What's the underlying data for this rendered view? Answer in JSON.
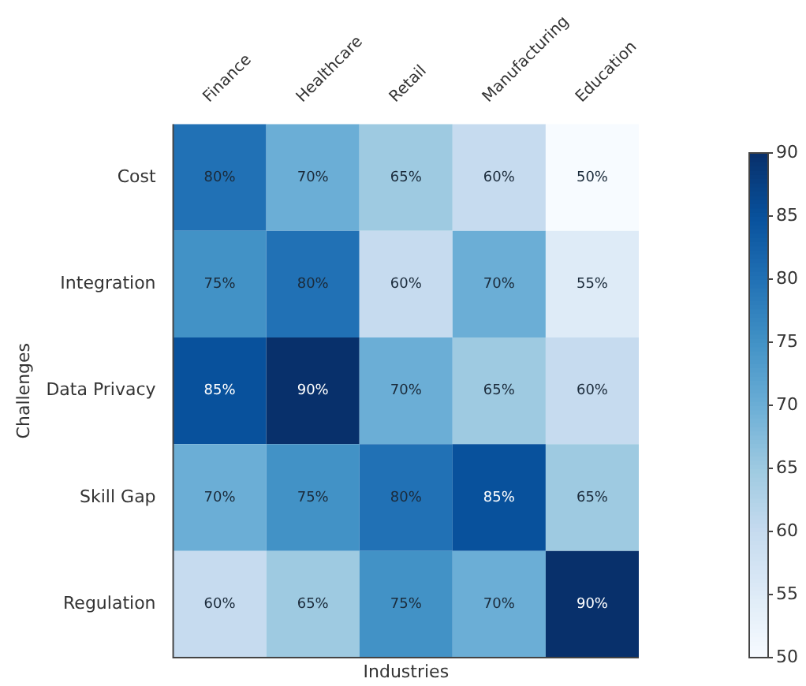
{
  "chart_data": {
    "type": "heatmap",
    "xlabel": "Industries",
    "ylabel": "Challenges",
    "categories": [
      "Finance",
      "Healthcare",
      "Retail",
      "Manufacturing",
      "Education"
    ],
    "y_categories": [
      "Cost",
      "Integration",
      "Data Privacy",
      "Skill Gap",
      "Regulation"
    ],
    "cells": [
      [
        80,
        70,
        65,
        60,
        50
      ],
      [
        75,
        80,
        60,
        70,
        55
      ],
      [
        85,
        90,
        70,
        65,
        60
      ],
      [
        70,
        75,
        80,
        85,
        65
      ],
      [
        60,
        65,
        75,
        70,
        90
      ]
    ],
    "cell_labels": [
      [
        "80%",
        "70%",
        "65%",
        "60%",
        "50%"
      ],
      [
        "75%",
        "80%",
        "60%",
        "70%",
        "55%"
      ],
      [
        "85%",
        "90%",
        "70%",
        "65%",
        "60%"
      ],
      [
        "70%",
        "75%",
        "80%",
        "85%",
        "65%"
      ],
      [
        "60%",
        "65%",
        "75%",
        "70%",
        "90%"
      ]
    ],
    "clim": [
      50,
      90
    ],
    "cticks": [
      50,
      55,
      60,
      65,
      70,
      75,
      80,
      85,
      90
    ]
  }
}
